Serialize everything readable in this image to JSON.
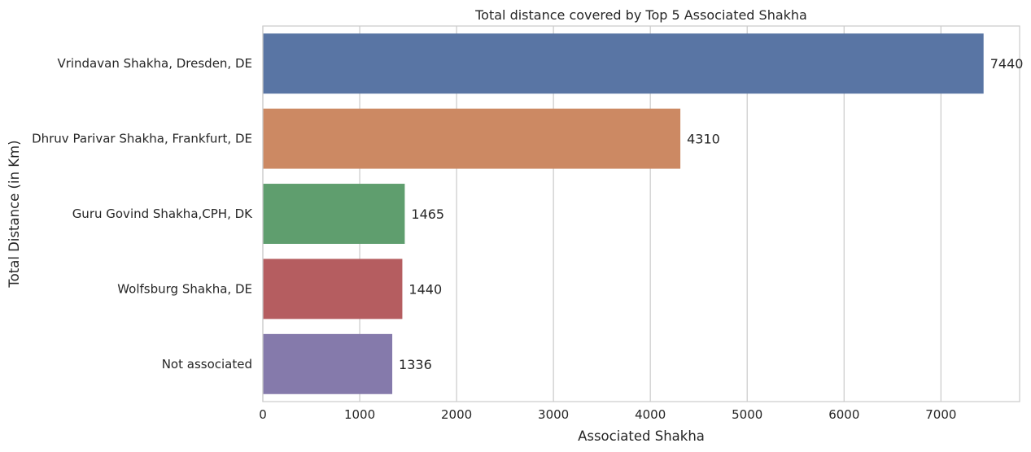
{
  "chart_data": {
    "type": "bar",
    "orientation": "horizontal",
    "title": "Total distance covered by Top 5 Associated Shakha",
    "xlabel": "Associated Shakha",
    "ylabel": "Total Distance (in Km)",
    "categories": [
      "Vrindavan Shakha, Dresden, DE",
      "Dhruv Parivar Shakha, Frankfurt, DE",
      "Guru Govind Shakha,CPH, DK",
      "Wolfsburg Shakha, DE",
      "Not associated"
    ],
    "values": [
      7440,
      4310,
      1465,
      1440,
      1336
    ],
    "value_labels": [
      "7440",
      "4310",
      "1465",
      "1440",
      "1336"
    ],
    "colors": [
      "#5975a4",
      "#cc8963",
      "#5f9e6e",
      "#b55d60",
      "#857aab"
    ],
    "xlim": [
      0,
      7812
    ],
    "xticks": [
      0,
      1000,
      2000,
      3000,
      4000,
      5000,
      6000,
      7000
    ],
    "xtick_labels": [
      "0",
      "1000",
      "2000",
      "3000",
      "4000",
      "5000",
      "6000",
      "7000"
    ],
    "grid": true,
    "grid_axis": "x",
    "grid_color": "#cccccc",
    "spine_color": "#cccccc"
  }
}
